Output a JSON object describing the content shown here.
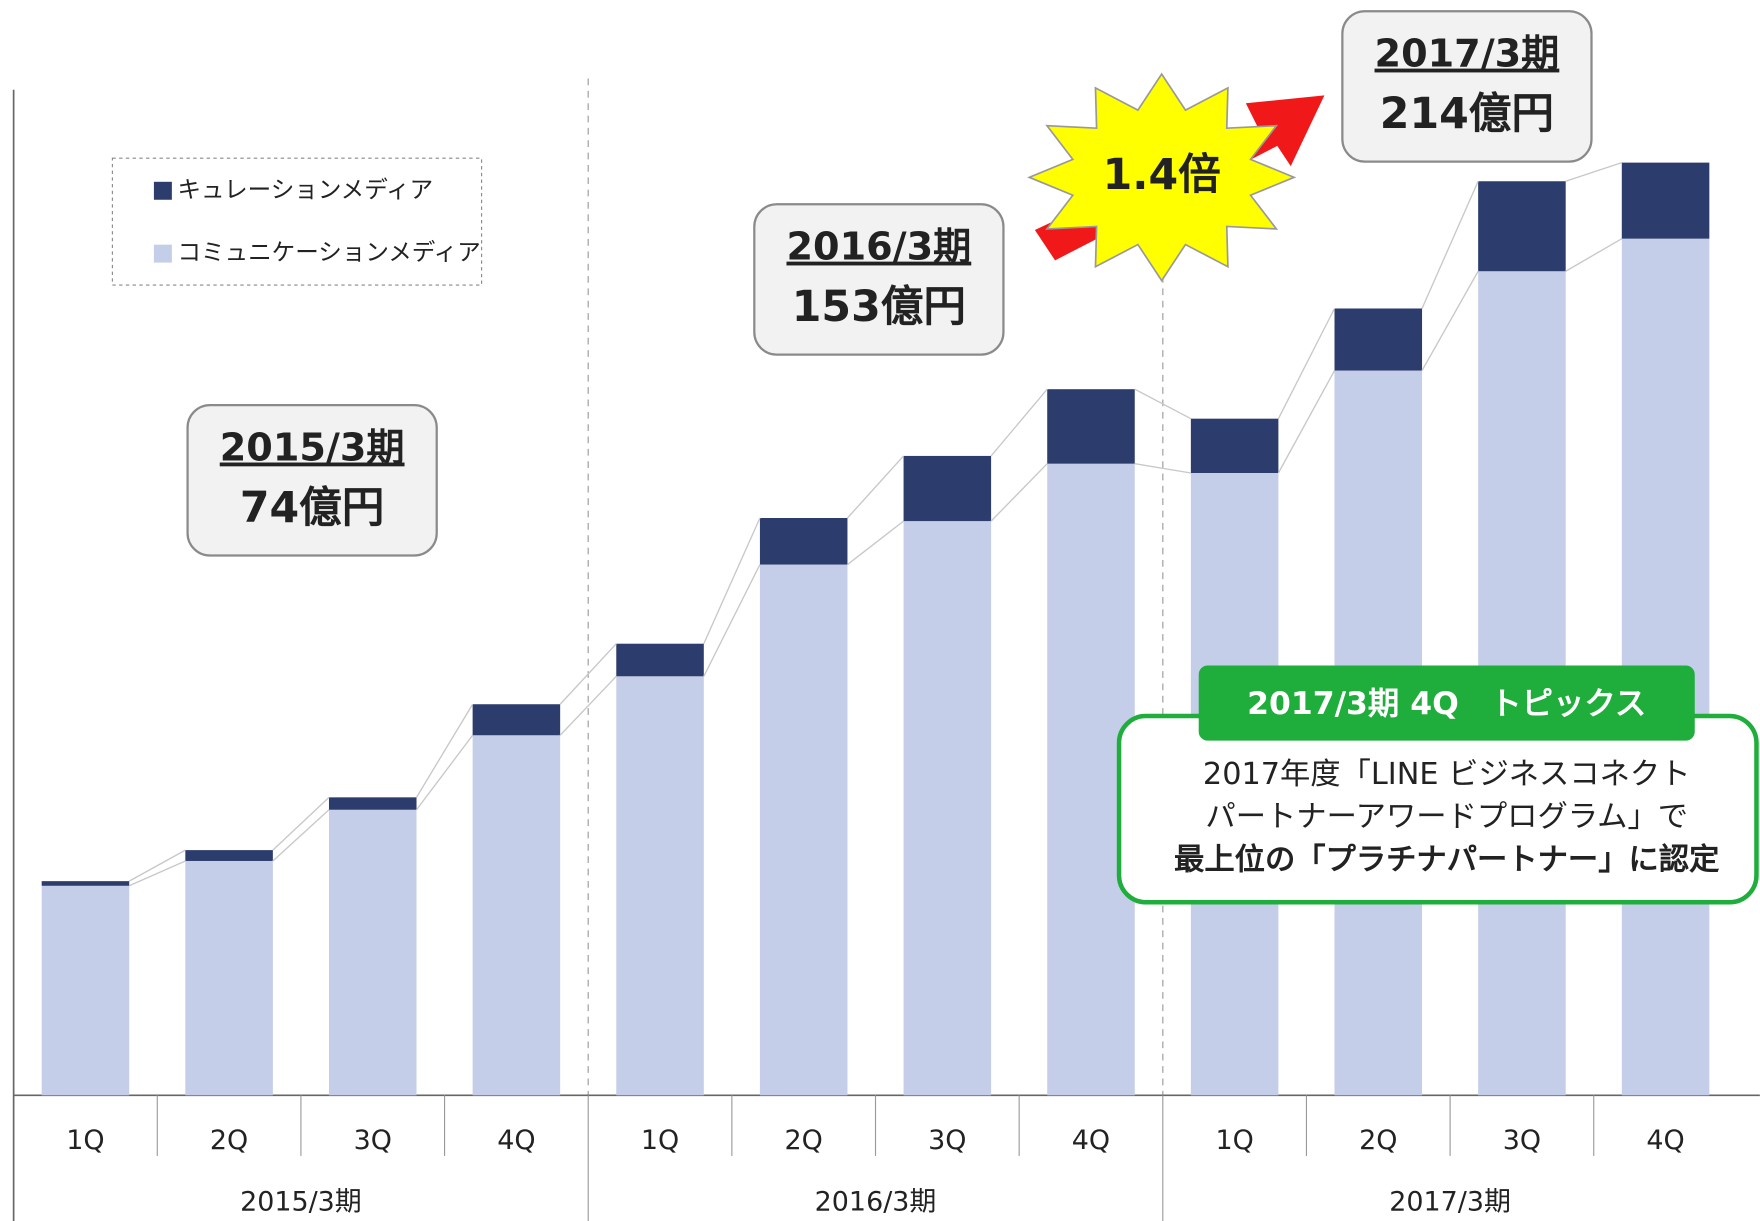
{
  "chart_data": {
    "type": "bar",
    "stacked": true,
    "categories": [
      "1Q",
      "2Q",
      "3Q",
      "4Q",
      "1Q",
      "2Q",
      "3Q",
      "4Q",
      "1Q",
      "2Q",
      "3Q",
      "4Q"
    ],
    "groups": [
      "2015/3期",
      "2016/3期",
      "2017/3期"
    ],
    "series": [
      {
        "name": "コミュニケーションメディア",
        "color": "#c5cee8",
        "values": [
          13.5,
          15.1,
          18.4,
          23.2,
          27.0,
          34.2,
          37.0,
          40.7,
          40.1,
          46.7,
          53.1,
          55.2
        ]
      },
      {
        "name": "キュレーションメディア",
        "color": "#2c3d6d",
        "values": [
          0.3,
          0.7,
          0.8,
          2.0,
          2.1,
          3.0,
          4.2,
          4.8,
          3.5,
          4.0,
          5.8,
          4.9
        ]
      }
    ],
    "ylim": [
      0,
      70
    ],
    "legend": "upper left",
    "callouts": [
      {
        "period": "2015/3期",
        "amount": "74億円"
      },
      {
        "period": "2016/3期",
        "amount": "153億円"
      },
      {
        "period": "2017/3期",
        "amount": "214億円"
      }
    ],
    "badge": "1.4倍",
    "topics": {
      "title": "2017/3期 4Q　トピックス",
      "lines": [
        "2017年度「LINE ビジネスコネクト",
        "パートナーアワードプログラム」で",
        "最上位の「プラチナパートナー」に認定"
      ]
    }
  }
}
